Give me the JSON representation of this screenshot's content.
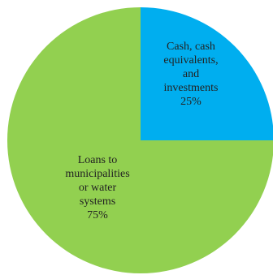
{
  "chart_data": {
    "type": "pie",
    "slices": [
      {
        "label_lines": [
          "Cash, cash",
          "equivalents,",
          "and",
          "investments"
        ],
        "value": 25,
        "value_label": "25%",
        "color": "#00AEEF"
      },
      {
        "label_lines": [
          "Loans to",
          "municipalities",
          "or water",
          "systems"
        ],
        "value": 75,
        "value_label": "75%",
        "color": "#92D050"
      }
    ],
    "start": "12 o'clock",
    "direction": "clockwise",
    "legend": "none",
    "labels_inside": true
  }
}
